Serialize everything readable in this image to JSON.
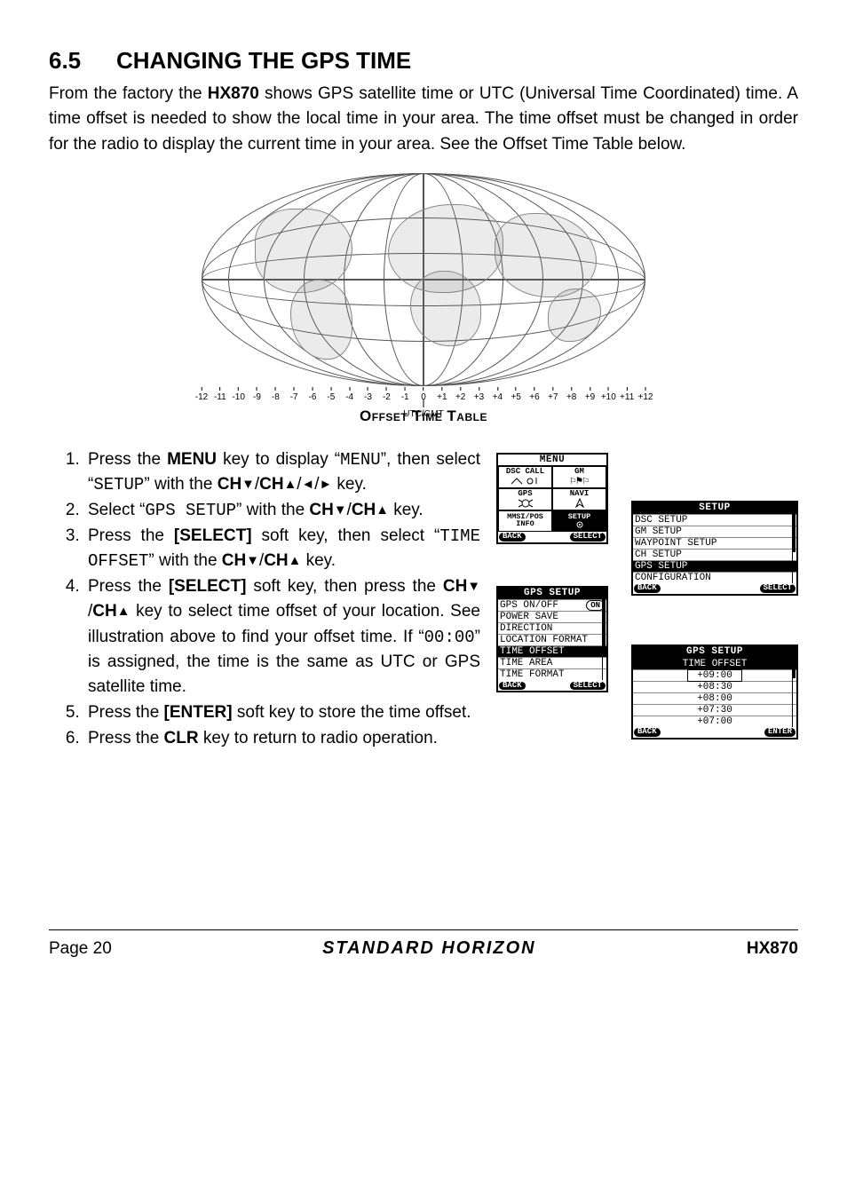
{
  "heading_num": "6.5",
  "heading_text": "CHANGING THE GPS TIME",
  "intro_1a": "From the factory the ",
  "intro_1b_bold": "HX870",
  "intro_1c": " shows GPS satellite time or UTC (Universal Time Coordinated) time. A time offset is needed to show the local time in your area. The time offset must be changed in order for the radio to display the current time in your area. See the Offset Time Table below.",
  "figure": {
    "caption": "Offset Time Table",
    "utc_label": "UTC/GMT",
    "ticks_left": [
      "-12",
      "-11",
      "-10",
      "-9",
      "-8",
      "-7",
      "-6",
      "-5",
      "-4",
      "-3",
      "-2",
      "-1"
    ],
    "center_tick": "0",
    "ticks_right": [
      "+1",
      "+2",
      "+3",
      "+4",
      "+5",
      "+6",
      "+7",
      "+8",
      "+9",
      "+10",
      "+11",
      "+12"
    ]
  },
  "steps": {
    "s1a": "Press the ",
    "s1b_bold": "MENU",
    "s1c": " key to display “",
    "s1d_mono": "MENU",
    "s1e": "”, then select “",
    "s1f_mono": "SETUP",
    "s1g": "” with the ",
    "s1h_bold": "CH",
    "s1i": "/",
    "s1j_bold": "CH",
    "s1k": "/",
    "s1l": "/",
    "s1m": " key.",
    "s2a": "Select “",
    "s2b_mono": "GPS SETUP",
    "s2c": "” with the ",
    "s2d_bold": "CH",
    "s2e": "/",
    "s2f_bold": "CH",
    "s2g": " key.",
    "s3a": "Press the ",
    "s3b_bold": "[SELECT]",
    "s3c": " soft key, then select “",
    "s3d_mono": "TIME OFFSET",
    "s3e": "” with the ",
    "s3f_bold": "CH",
    "s3g": "/",
    "s3h_bold": "CH",
    "s3i": " key.",
    "s4a": "Press the ",
    "s4b_bold": "[SELECT]",
    "s4c": " soft key, then press the ",
    "s4d_bold": "CH",
    "s4e": "/",
    "s4f_bold": "CH",
    "s4g": " key to select time offset of your location. See illustration above to find your offset time. If “",
    "s4h_mono": "00:00",
    "s4i": "” is assigned, the time is the same as UTC or GPS satellite time.",
    "s5a": "Press the ",
    "s5b_bold": "[ENTER]",
    "s5c": " soft key to store the time offset.",
    "s6a": "Press the ",
    "s6b_bold": "CLR",
    "s6c": " key to return to radio operation."
  },
  "screens": {
    "menu": {
      "title": "MENU",
      "cells": [
        "DSC CALL",
        "GM",
        "GPS",
        "NAVI",
        "MMSI/POS\nINFO",
        "SETUP"
      ],
      "back": "BACK",
      "select": "SELECT"
    },
    "setup": {
      "title": "SETUP",
      "items": [
        "DSC SETUP",
        "GM SETUP",
        "WAYPOINT SETUP",
        "CH SETUP",
        "GPS SETUP",
        "CONFIGURATION"
      ],
      "hl_index": 4,
      "back": "BACK",
      "select": "SELECT"
    },
    "gps": {
      "title": "GPS SETUP",
      "items": [
        "GPS ON/OFF",
        "POWER SAVE",
        "DIRECTION",
        "LOCATION FORMAT",
        "TIME OFFSET",
        "TIME AREA",
        "TIME FORMAT"
      ],
      "val0": "ON",
      "hl_index": 4,
      "back": "BACK",
      "select": "SELECT"
    },
    "offset": {
      "title": "GPS SETUP",
      "sub": "TIME OFFSET",
      "items": [
        "+09:00",
        "+08:30",
        "+08:00",
        "+07:30",
        "+07:00"
      ],
      "hl_index": 0,
      "back": "BACK",
      "enter": "ENTER"
    }
  },
  "footer": {
    "page": "Page 20",
    "brand": "STANDARD HORIZON",
    "model": "HX870"
  }
}
